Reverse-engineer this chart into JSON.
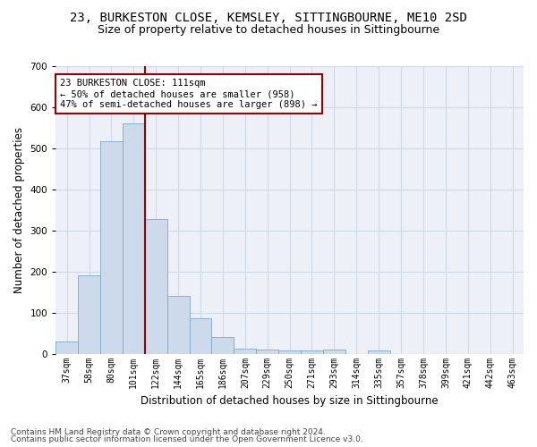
{
  "title1": "23, BURKESTON CLOSE, KEMSLEY, SITTINGBOURNE, ME10 2SD",
  "title2": "Size of property relative to detached houses in Sittingbourne",
  "xlabel": "Distribution of detached houses by size in Sittingbourne",
  "ylabel": "Number of detached properties",
  "footer1": "Contains HM Land Registry data © Crown copyright and database right 2024.",
  "footer2": "Contains public sector information licensed under the Open Government Licence v3.0.",
  "annotation_line1": "23 BURKESTON CLOSE: 111sqm",
  "annotation_line2": "← 50% of detached houses are smaller (958)",
  "annotation_line3": "47% of semi-detached houses are larger (898) →",
  "bar_color": "#ccdaeb",
  "bar_edge_color": "#7aaaca",
  "vline_color": "#990000",
  "grid_color": "#d0d8e4",
  "background_color": "#edf1f7",
  "categories": [
    "37sqm",
    "58sqm",
    "80sqm",
    "101sqm",
    "122sqm",
    "144sqm",
    "165sqm",
    "186sqm",
    "207sqm",
    "229sqm",
    "250sqm",
    "271sqm",
    "293sqm",
    "314sqm",
    "335sqm",
    "357sqm",
    "378sqm",
    "399sqm",
    "421sqm",
    "442sqm",
    "463sqm"
  ],
  "values": [
    30,
    190,
    518,
    560,
    328,
    140,
    87,
    40,
    13,
    10,
    8,
    8,
    10,
    0,
    8,
    0,
    0,
    0,
    0,
    0,
    0
  ],
  "ylim": [
    0,
    700
  ],
  "vline_x": 3.5,
  "bar_width": 1.0,
  "title1_fontsize": 10,
  "title2_fontsize": 9,
  "tick_fontsize": 7,
  "ylabel_fontsize": 8.5,
  "xlabel_fontsize": 8.5,
  "footer_fontsize": 6.5,
  "annot_fontsize": 7.5
}
